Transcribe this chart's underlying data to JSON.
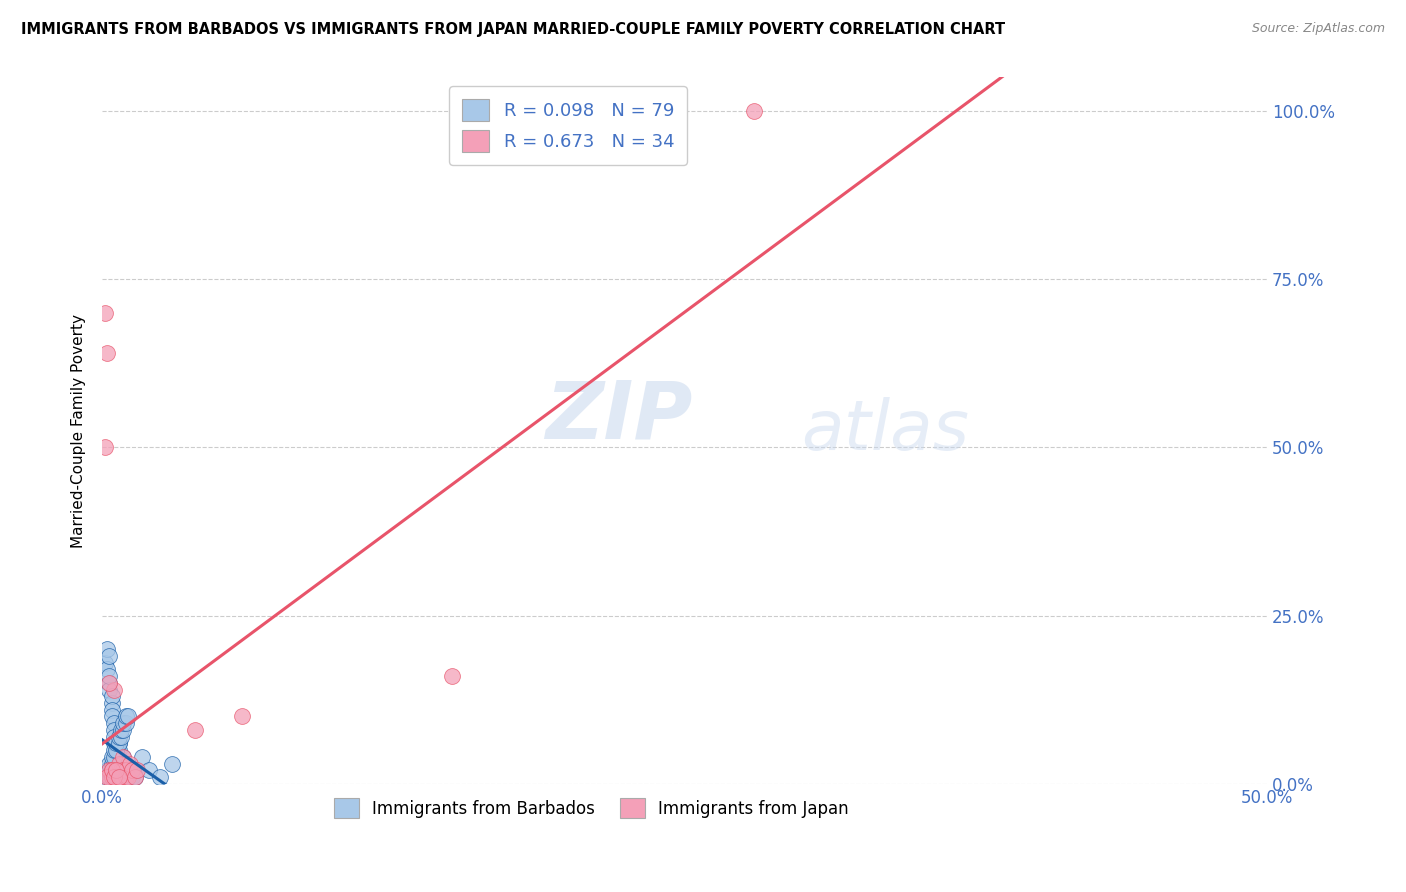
{
  "title": "IMMIGRANTS FROM BARBADOS VS IMMIGRANTS FROM JAPAN MARRIED-COUPLE FAMILY POVERTY CORRELATION CHART",
  "source": "Source: ZipAtlas.com",
  "xlabel_barbados": "Immigrants from Barbados",
  "xlabel_japan": "Immigrants from Japan",
  "ylabel": "Married-Couple Family Poverty",
  "xlim": [
    0.0,
    0.5
  ],
  "ylim": [
    0.0,
    1.05
  ],
  "x_tick_positions": [
    0.0,
    0.5
  ],
  "x_tick_labels": [
    "0.0%",
    "50.0%"
  ],
  "y_ticks": [
    0.0,
    0.25,
    0.5,
    0.75,
    1.0
  ],
  "y_tick_labels": [
    "0.0%",
    "25.0%",
    "50.0%",
    "75.0%",
    "100.0%"
  ],
  "watermark_line1": "ZIP",
  "watermark_line2": "atlas",
  "R_barbados": 0.098,
  "N_barbados": 79,
  "R_japan": 0.673,
  "N_japan": 34,
  "color_barbados": "#a8c8e8",
  "color_japan": "#f4a0b8",
  "line_color_barbados": "#1a5fa8",
  "line_color_japan": "#e8546a",
  "tick_color": "#4472c4",
  "barbados_x": [
    0.001,
    0.002,
    0.002,
    0.003,
    0.003,
    0.003,
    0.003,
    0.004,
    0.004,
    0.004,
    0.004,
    0.005,
    0.005,
    0.005,
    0.005,
    0.006,
    0.006,
    0.006,
    0.006,
    0.007,
    0.007,
    0.007,
    0.007,
    0.008,
    0.008,
    0.008,
    0.009,
    0.009,
    0.009,
    0.01,
    0.01,
    0.01,
    0.011,
    0.011,
    0.012,
    0.012,
    0.013,
    0.013,
    0.014,
    0.014,
    0.001,
    0.002,
    0.002,
    0.003,
    0.003,
    0.004,
    0.004,
    0.005,
    0.005,
    0.006,
    0.006,
    0.007,
    0.007,
    0.008,
    0.008,
    0.009,
    0.009,
    0.01,
    0.01,
    0.011,
    0.001,
    0.002,
    0.003,
    0.004,
    0.005,
    0.006,
    0.007,
    0.008,
    0.001,
    0.002,
    0.003,
    0.004,
    0.005,
    0.006,
    0.007,
    0.017,
    0.02,
    0.025,
    0.03
  ],
  "barbados_y": [
    0.18,
    0.2,
    0.17,
    0.15,
    0.14,
    0.16,
    0.19,
    0.12,
    0.13,
    0.11,
    0.1,
    0.09,
    0.08,
    0.07,
    0.06,
    0.05,
    0.04,
    0.03,
    0.02,
    0.01,
    0.06,
    0.05,
    0.04,
    0.03,
    0.02,
    0.01,
    0.04,
    0.03,
    0.02,
    0.03,
    0.02,
    0.01,
    0.02,
    0.01,
    0.02,
    0.01,
    0.02,
    0.01,
    0.02,
    0.01,
    0.01,
    0.01,
    0.02,
    0.02,
    0.03,
    0.03,
    0.04,
    0.04,
    0.05,
    0.05,
    0.06,
    0.06,
    0.07,
    0.07,
    0.08,
    0.08,
    0.09,
    0.09,
    0.1,
    0.1,
    0.0,
    0.0,
    0.0,
    0.0,
    0.0,
    0.0,
    0.0,
    0.0,
    0.0,
    0.0,
    0.0,
    0.0,
    0.0,
    0.0,
    0.0,
    0.04,
    0.02,
    0.01,
    0.03
  ],
  "japan_x": [
    0.001,
    0.002,
    0.003,
    0.003,
    0.004,
    0.004,
    0.005,
    0.005,
    0.006,
    0.006,
    0.007,
    0.007,
    0.008,
    0.008,
    0.009,
    0.009,
    0.01,
    0.01,
    0.011,
    0.012,
    0.013,
    0.014,
    0.015,
    0.001,
    0.002,
    0.003,
    0.004,
    0.005,
    0.006,
    0.007,
    0.28,
    0.15,
    0.06,
    0.04
  ],
  "japan_y": [
    0.7,
    0.64,
    0.01,
    0.02,
    0.01,
    0.02,
    0.01,
    0.14,
    0.01,
    0.02,
    0.01,
    0.03,
    0.02,
    0.01,
    0.04,
    0.02,
    0.01,
    0.02,
    0.01,
    0.03,
    0.02,
    0.01,
    0.02,
    0.5,
    0.01,
    0.15,
    0.02,
    0.01,
    0.02,
    0.01,
    1.0,
    0.16,
    0.1,
    0.08
  ],
  "reg_barbados_slope": 0.8,
  "reg_barbados_intercept": 0.04,
  "reg_japan_slope": 3.3,
  "reg_japan_intercept": -0.02
}
